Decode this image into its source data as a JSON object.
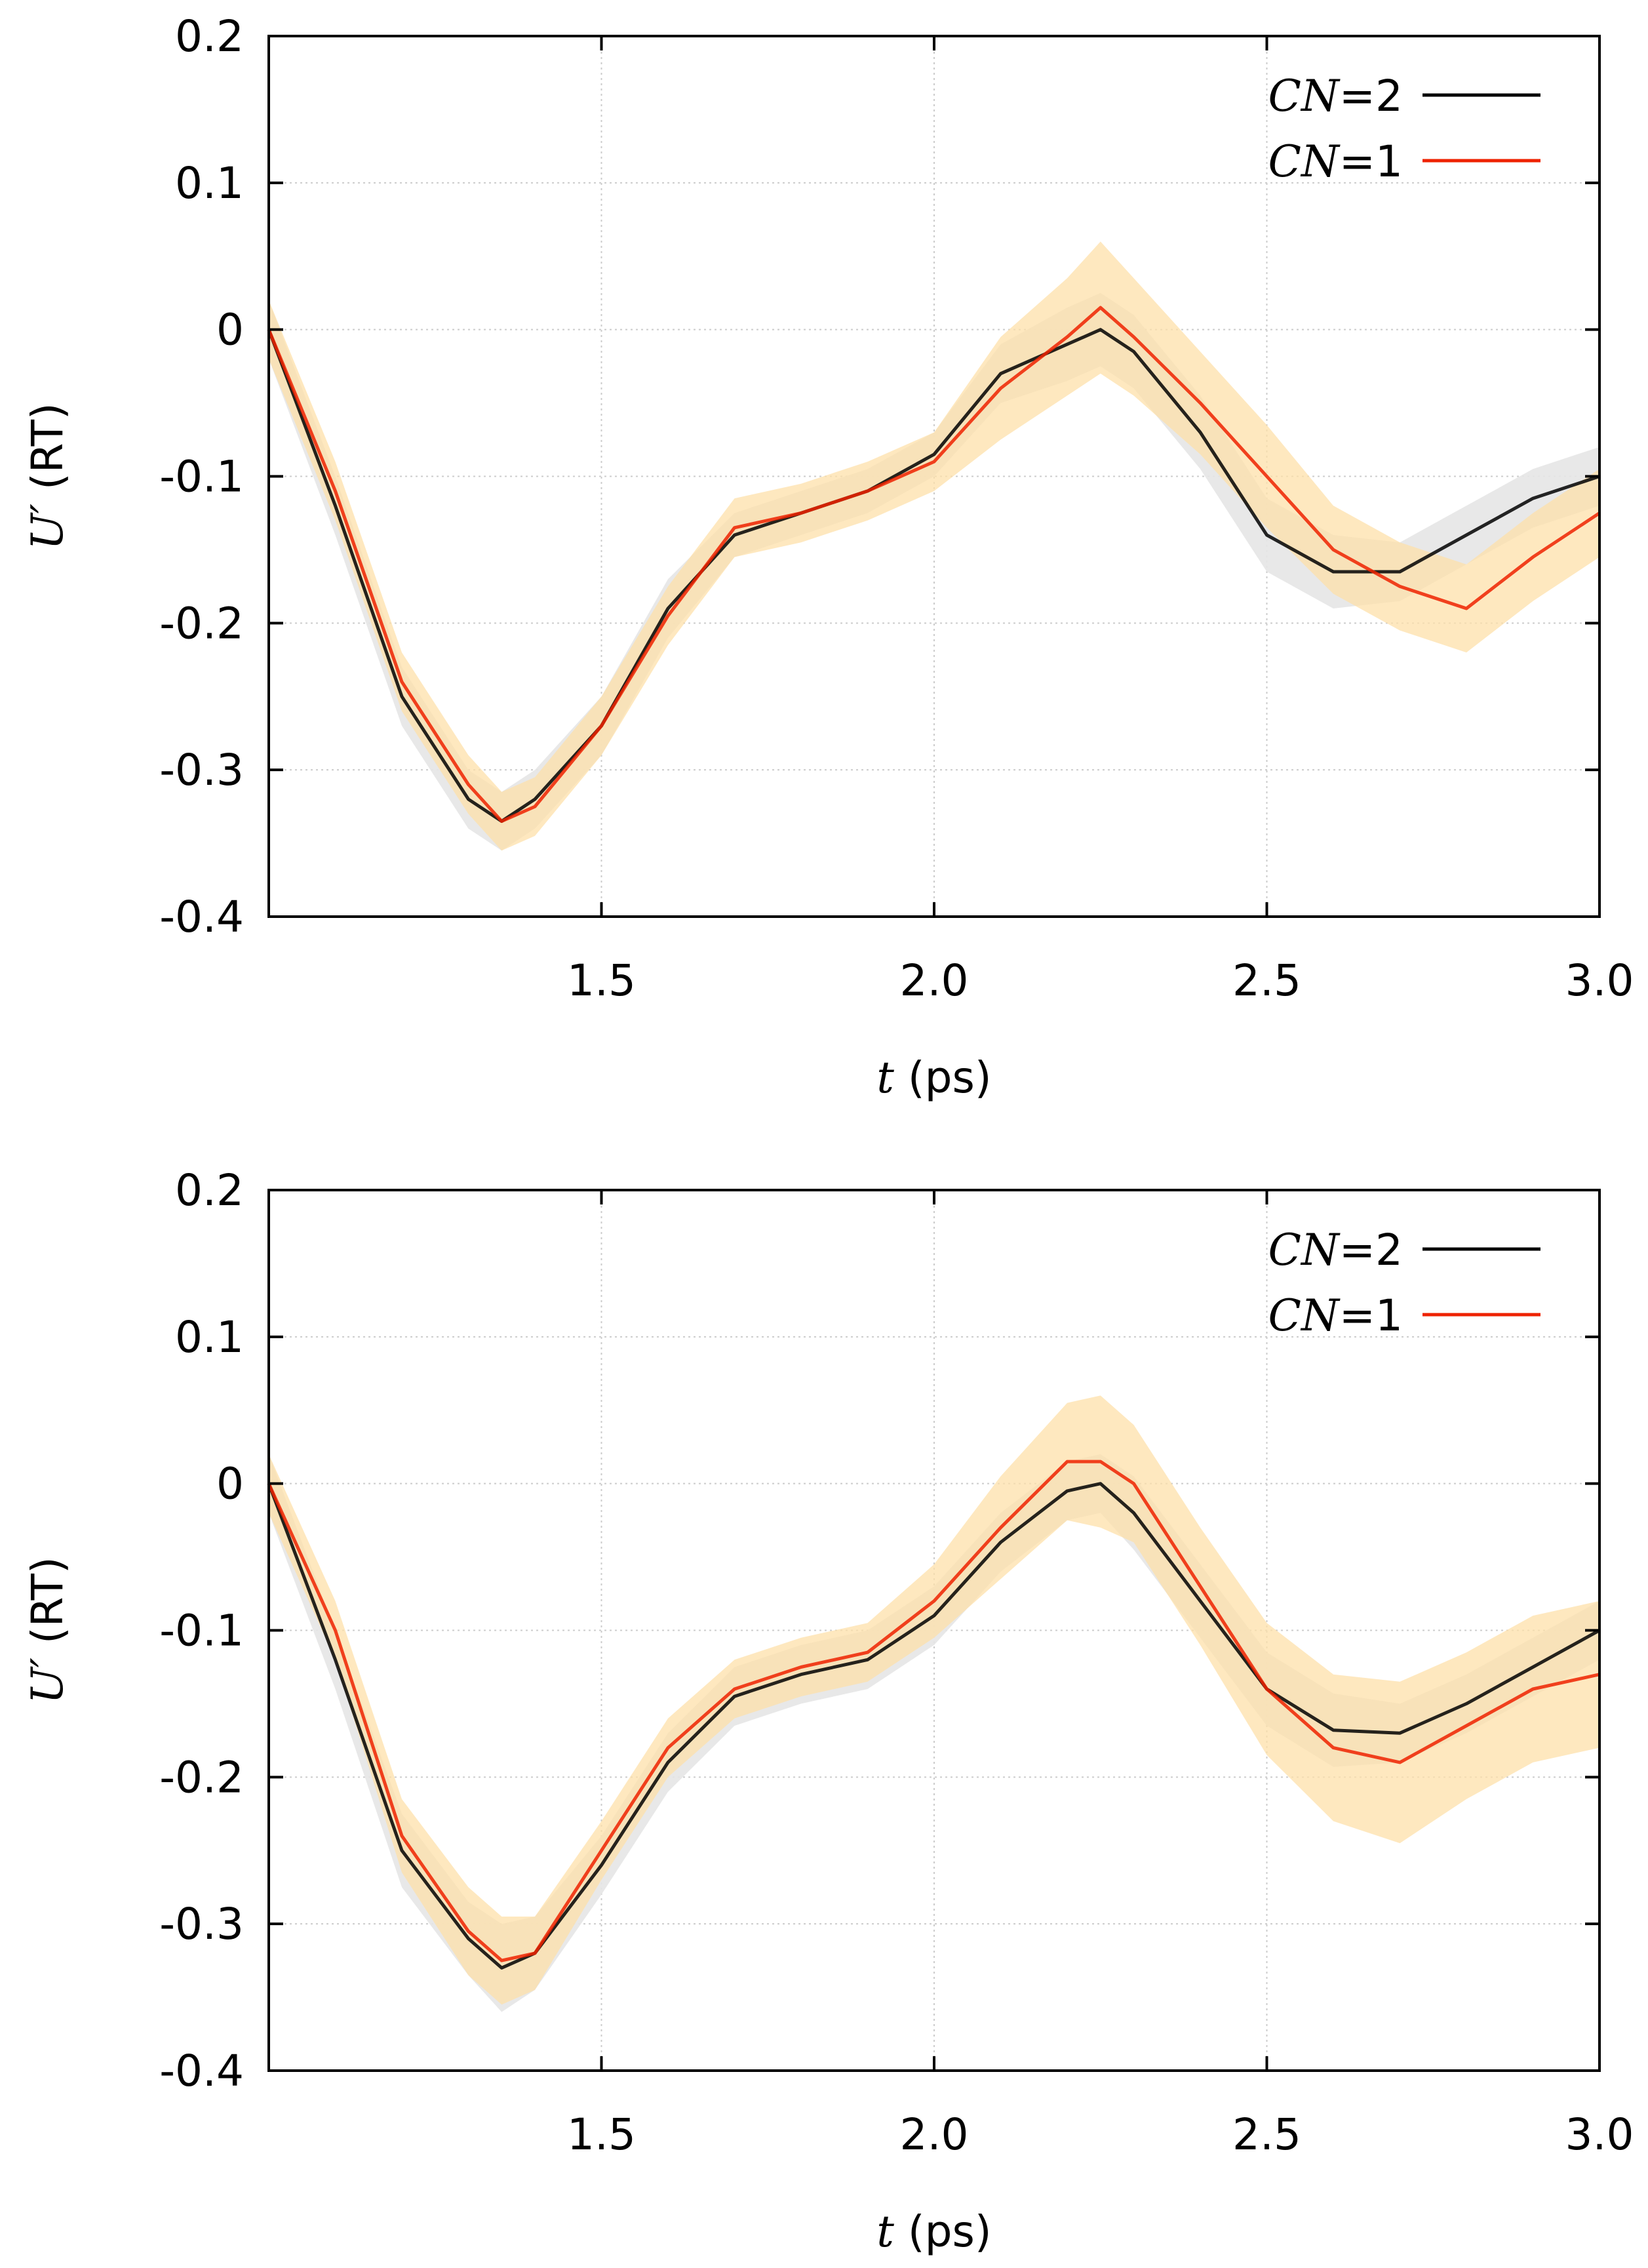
{
  "chart_data": [
    {
      "type": "line",
      "panel": "top",
      "xlabel": "t (ps)",
      "xlabel_var": "t",
      "xlabel_unit": "(ps)",
      "ylabel": "U′ (RT)",
      "ylabel_var": "U′",
      "ylabel_unit": "(RT)",
      "xlim": [
        1.0,
        3.0
      ],
      "ylim": [
        -0.4,
        0.2
      ],
      "xticks": [
        1.5,
        2.0,
        2.5,
        3.0
      ],
      "xtick_labels": [
        "1.5",
        "2.0",
        "2.5",
        "3.0"
      ],
      "yticks": [
        0.2,
        0.1,
        0,
        -0.1,
        -0.2,
        -0.3,
        -0.4
      ],
      "ytick_labels": [
        "0.2",
        "0.1",
        "0",
        "-0.1",
        "-0.2",
        "-0.3",
        "-0.4"
      ],
      "grid": true,
      "legend_position": "top-right",
      "x": [
        1.0,
        1.1,
        1.2,
        1.3,
        1.35,
        1.4,
        1.5,
        1.6,
        1.7,
        1.8,
        1.9,
        2.0,
        2.1,
        2.2,
        2.25,
        2.3,
        2.4,
        2.5,
        2.6,
        2.7,
        2.8,
        2.9,
        3.0
      ],
      "series": [
        {
          "name": "CN=2",
          "name_var": "CN",
          "name_rest": "=2",
          "color": "#000000",
          "band_color": "#e6e6e6",
          "values": [
            0.0,
            -0.12,
            -0.25,
            -0.32,
            -0.335,
            -0.32,
            -0.27,
            -0.19,
            -0.14,
            -0.125,
            -0.11,
            -0.085,
            -0.03,
            -0.01,
            0.0,
            -0.015,
            -0.07,
            -0.14,
            -0.165,
            -0.165,
            -0.14,
            -0.115,
            -0.1
          ],
          "band": [
            0.02,
            0.02,
            0.02,
            0.02,
            0.02,
            0.02,
            0.02,
            0.02,
            0.015,
            0.015,
            0.015,
            0.015,
            0.02,
            0.025,
            0.025,
            0.025,
            0.025,
            0.025,
            0.025,
            0.02,
            0.02,
            0.02,
            0.02
          ]
        },
        {
          "name": "CN=1",
          "name_var": "CN",
          "name_rest": "=1",
          "color": "#ee2200",
          "band_color": "#fde0aa",
          "values": [
            0.0,
            -0.11,
            -0.24,
            -0.31,
            -0.335,
            -0.325,
            -0.27,
            -0.195,
            -0.135,
            -0.125,
            -0.11,
            -0.09,
            -0.04,
            -0.005,
            0.015,
            -0.005,
            -0.05,
            -0.1,
            -0.15,
            -0.175,
            -0.19,
            -0.155,
            -0.125
          ],
          "band": [
            0.02,
            0.02,
            0.02,
            0.02,
            0.02,
            0.02,
            0.02,
            0.02,
            0.02,
            0.02,
            0.02,
            0.02,
            0.035,
            0.04,
            0.045,
            0.04,
            0.035,
            0.035,
            0.03,
            0.03,
            0.03,
            0.03,
            0.03
          ]
        }
      ]
    },
    {
      "type": "line",
      "panel": "bottom",
      "xlabel": "t (ps)",
      "xlabel_var": "t",
      "xlabel_unit": "(ps)",
      "ylabel": "U′ (RT)",
      "ylabel_var": "U′",
      "ylabel_unit": "(RT)",
      "xlim": [
        1.0,
        3.0
      ],
      "ylim": [
        -0.4,
        0.2
      ],
      "xticks": [
        1.5,
        2.0,
        2.5,
        3.0
      ],
      "xtick_labels": [
        "1.5",
        "2.0",
        "2.5",
        "3.0"
      ],
      "yticks": [
        0.2,
        0.1,
        0,
        -0.1,
        -0.2,
        -0.3,
        -0.4
      ],
      "ytick_labels": [
        "0.2",
        "0.1",
        "0",
        "-0.1",
        "-0.2",
        "-0.3",
        "-0.4"
      ],
      "grid": true,
      "legend_position": "top-right",
      "x": [
        1.0,
        1.1,
        1.2,
        1.3,
        1.35,
        1.4,
        1.5,
        1.6,
        1.7,
        1.8,
        1.9,
        2.0,
        2.1,
        2.2,
        2.25,
        2.3,
        2.4,
        2.5,
        2.6,
        2.7,
        2.8,
        2.9,
        3.0
      ],
      "series": [
        {
          "name": "CN=2",
          "name_var": "CN",
          "name_rest": "=2",
          "color": "#000000",
          "band_color": "#e6e6e6",
          "values": [
            0.0,
            -0.12,
            -0.25,
            -0.31,
            -0.33,
            -0.32,
            -0.26,
            -0.19,
            -0.145,
            -0.13,
            -0.12,
            -0.09,
            -0.04,
            -0.005,
            0.0,
            -0.02,
            -0.08,
            -0.14,
            -0.168,
            -0.17,
            -0.15,
            -0.125,
            -0.1
          ],
          "band": [
            0.02,
            0.02,
            0.025,
            0.025,
            0.03,
            0.025,
            0.02,
            0.02,
            0.02,
            0.02,
            0.02,
            0.02,
            0.02,
            0.02,
            0.02,
            0.025,
            0.025,
            0.025,
            0.025,
            0.02,
            0.02,
            0.02,
            0.02
          ]
        },
        {
          "name": "CN=1",
          "name_var": "CN",
          "name_rest": "=1",
          "color": "#ee2200",
          "band_color": "#fde0aa",
          "values": [
            0.0,
            -0.1,
            -0.24,
            -0.305,
            -0.325,
            -0.32,
            -0.25,
            -0.18,
            -0.14,
            -0.125,
            -0.115,
            -0.08,
            -0.03,
            0.015,
            0.015,
            0.0,
            -0.07,
            -0.14,
            -0.18,
            -0.19,
            -0.165,
            -0.14,
            -0.13
          ],
          "band": [
            0.02,
            0.02,
            0.025,
            0.03,
            0.03,
            0.025,
            0.02,
            0.02,
            0.02,
            0.02,
            0.02,
            0.025,
            0.035,
            0.04,
            0.045,
            0.04,
            0.04,
            0.045,
            0.05,
            0.055,
            0.05,
            0.05,
            0.05
          ]
        }
      ]
    }
  ]
}
